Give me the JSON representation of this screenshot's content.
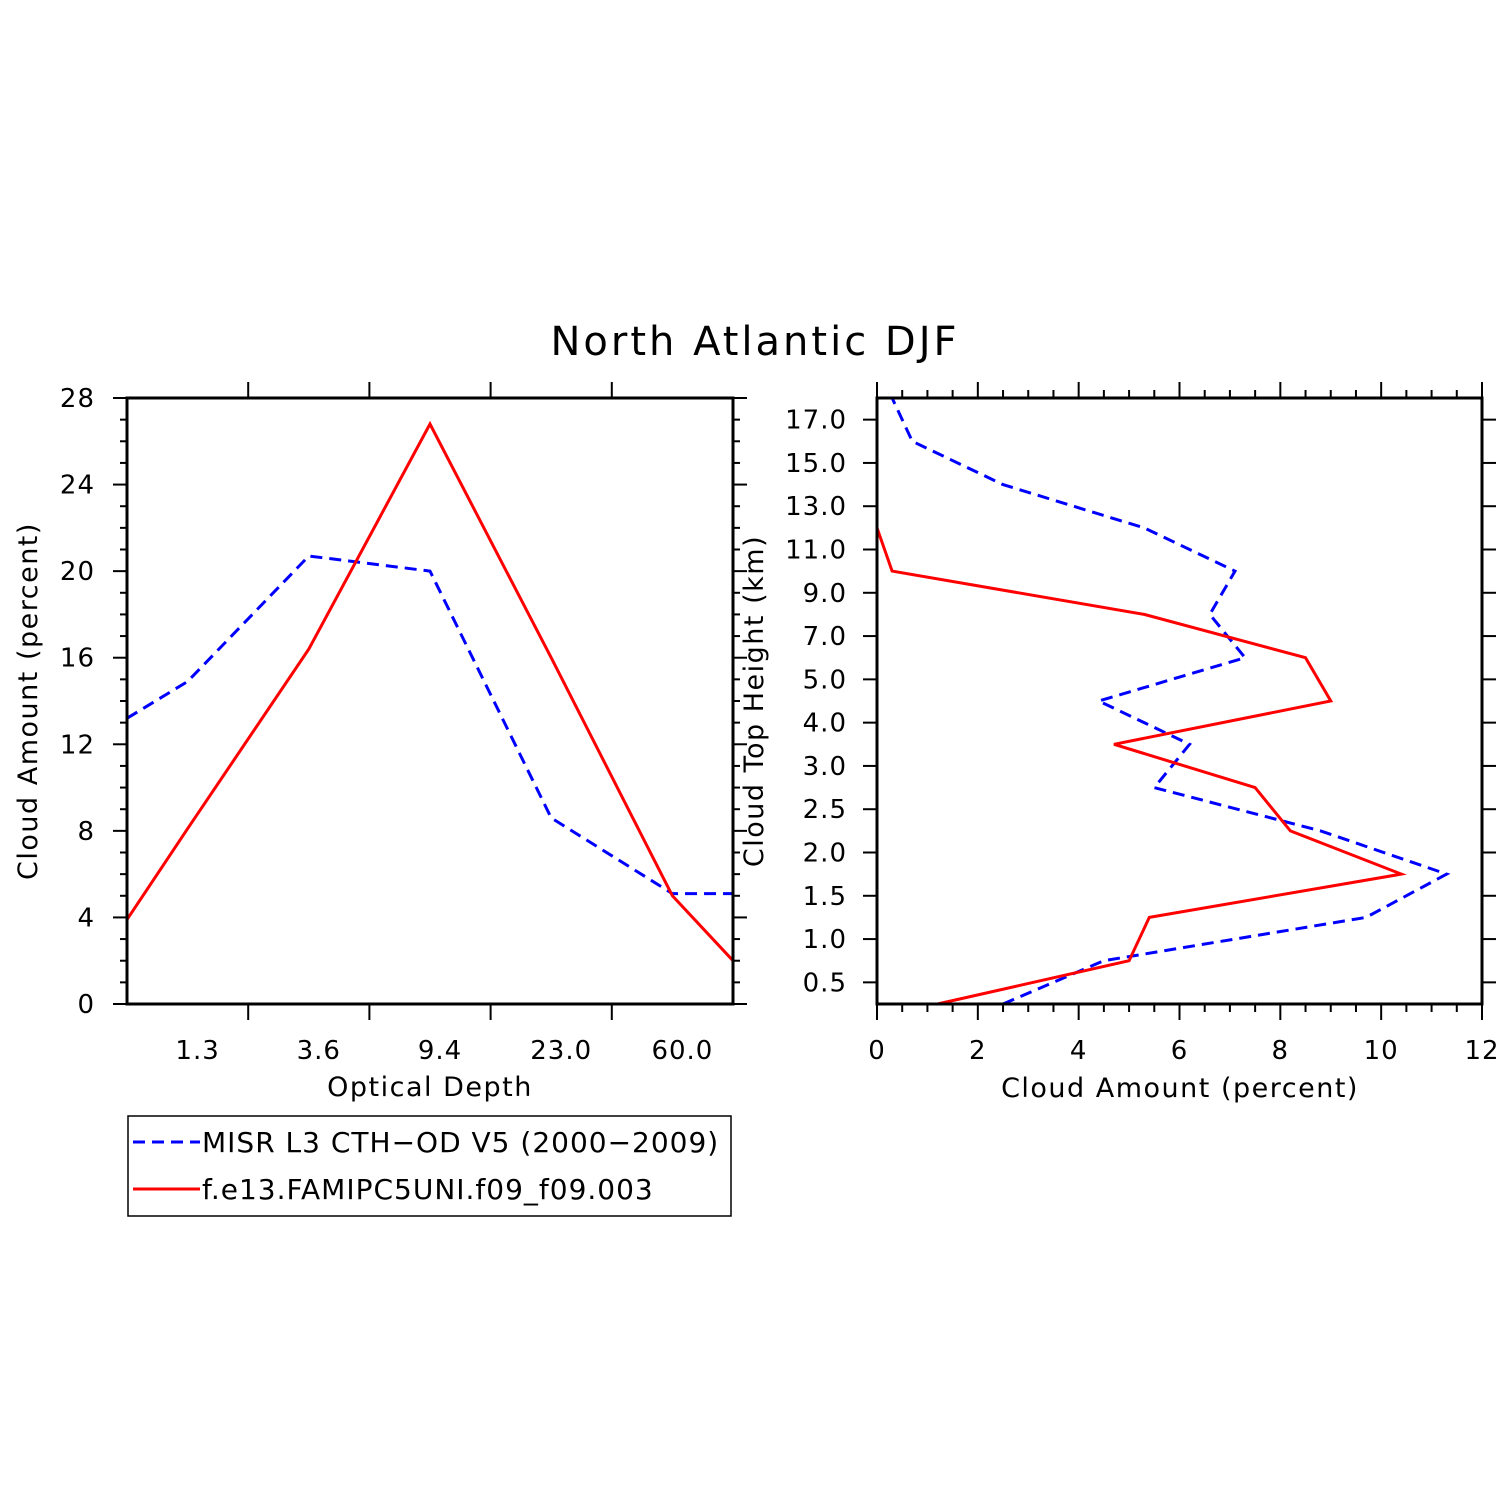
{
  "title": "North Atlantic DJF",
  "colors": {
    "obs": "#0000ff",
    "model": "#ff0000",
    "axis": "#000000"
  },
  "legend": {
    "entries": [
      {
        "label": "MISR L3 CTH−OD V5 (2000−2009)",
        "color": "#0000ff",
        "dash": true
      },
      {
        "label": "f.e13.FAMIPC5UNI.f09_f09.003",
        "color": "#ff0000",
        "dash": false
      }
    ]
  },
  "chart_data": [
    {
      "type": "line",
      "xlabel": "Optical Depth",
      "ylabel": "Cloud Amount (percent)",
      "ylim": [
        0,
        28
      ],
      "y_ticks": [
        "0",
        "4",
        "8",
        "12",
        "16",
        "20",
        "24",
        "28"
      ],
      "x_tick_labels": [
        "1.3",
        "3.6",
        "9.4",
        "23.0",
        "60.0"
      ],
      "x_bin_count": 5,
      "x_positions": [
        0,
        0.5,
        1.5,
        2.5,
        3.5,
        4.5,
        5
      ],
      "series": [
        {
          "name": "MISR L3 CTH−OD V5 (2000−2009)",
          "color": "#0000ff",
          "dash": true,
          "values": [
            13.2,
            14.9,
            20.7,
            20.0,
            8.6,
            5.1,
            5.1
          ]
        },
        {
          "name": "f.e13.FAMIPC5UNI.f09_f09.003",
          "color": "#ff0000",
          "dash": false,
          "values": [
            3.9,
            8.1,
            16.4,
            26.8,
            16.0,
            5.0,
            2.0
          ]
        }
      ]
    },
    {
      "type": "line",
      "orientation": "vertical-profile",
      "xlabel": "Cloud Amount (percent)",
      "ylabel": "Cloud Top Height (km)",
      "xlim": [
        0,
        12
      ],
      "x_ticks": [
        "0",
        "2",
        "4",
        "6",
        "8",
        "10",
        "12"
      ],
      "y_tick_labels": [
        "0.5",
        "1.0",
        "1.5",
        "2.0",
        "2.5",
        "3.0",
        "4.0",
        "5.0",
        "7.0",
        "9.0",
        "11.0",
        "13.0",
        "15.0",
        "17.0"
      ],
      "heights": [
        "0",
        "0.5",
        "1.0",
        "1.5",
        "2.0",
        "2.5",
        "3.0",
        "4.0",
        "5.0",
        "7.0",
        "9.0",
        "11.0",
        "13.0",
        "15.0",
        "17.0",
        "18.0"
      ],
      "series": [
        {
          "name": "MISR L3 CTH−OD V5 (2000−2009)",
          "color": "#0000ff",
          "dash": true,
          "values": [
            2.5,
            4.5,
            9.7,
            11.3,
            8.8,
            5.5,
            6.2,
            4.4,
            7.3,
            6.6,
            7.1,
            5.3,
            2.5,
            0.7,
            0.3
          ]
        },
        {
          "name": "f.e13.FAMIPC5UNI.f09_f09.003",
          "color": "#ff0000",
          "dash": false,
          "values": [
            1.2,
            5.0,
            5.4,
            10.4,
            8.2,
            7.5,
            4.7,
            9.0,
            8.5,
            5.3,
            0.3,
            0.0,
            0.0,
            0.0,
            0.0
          ]
        }
      ]
    }
  ]
}
